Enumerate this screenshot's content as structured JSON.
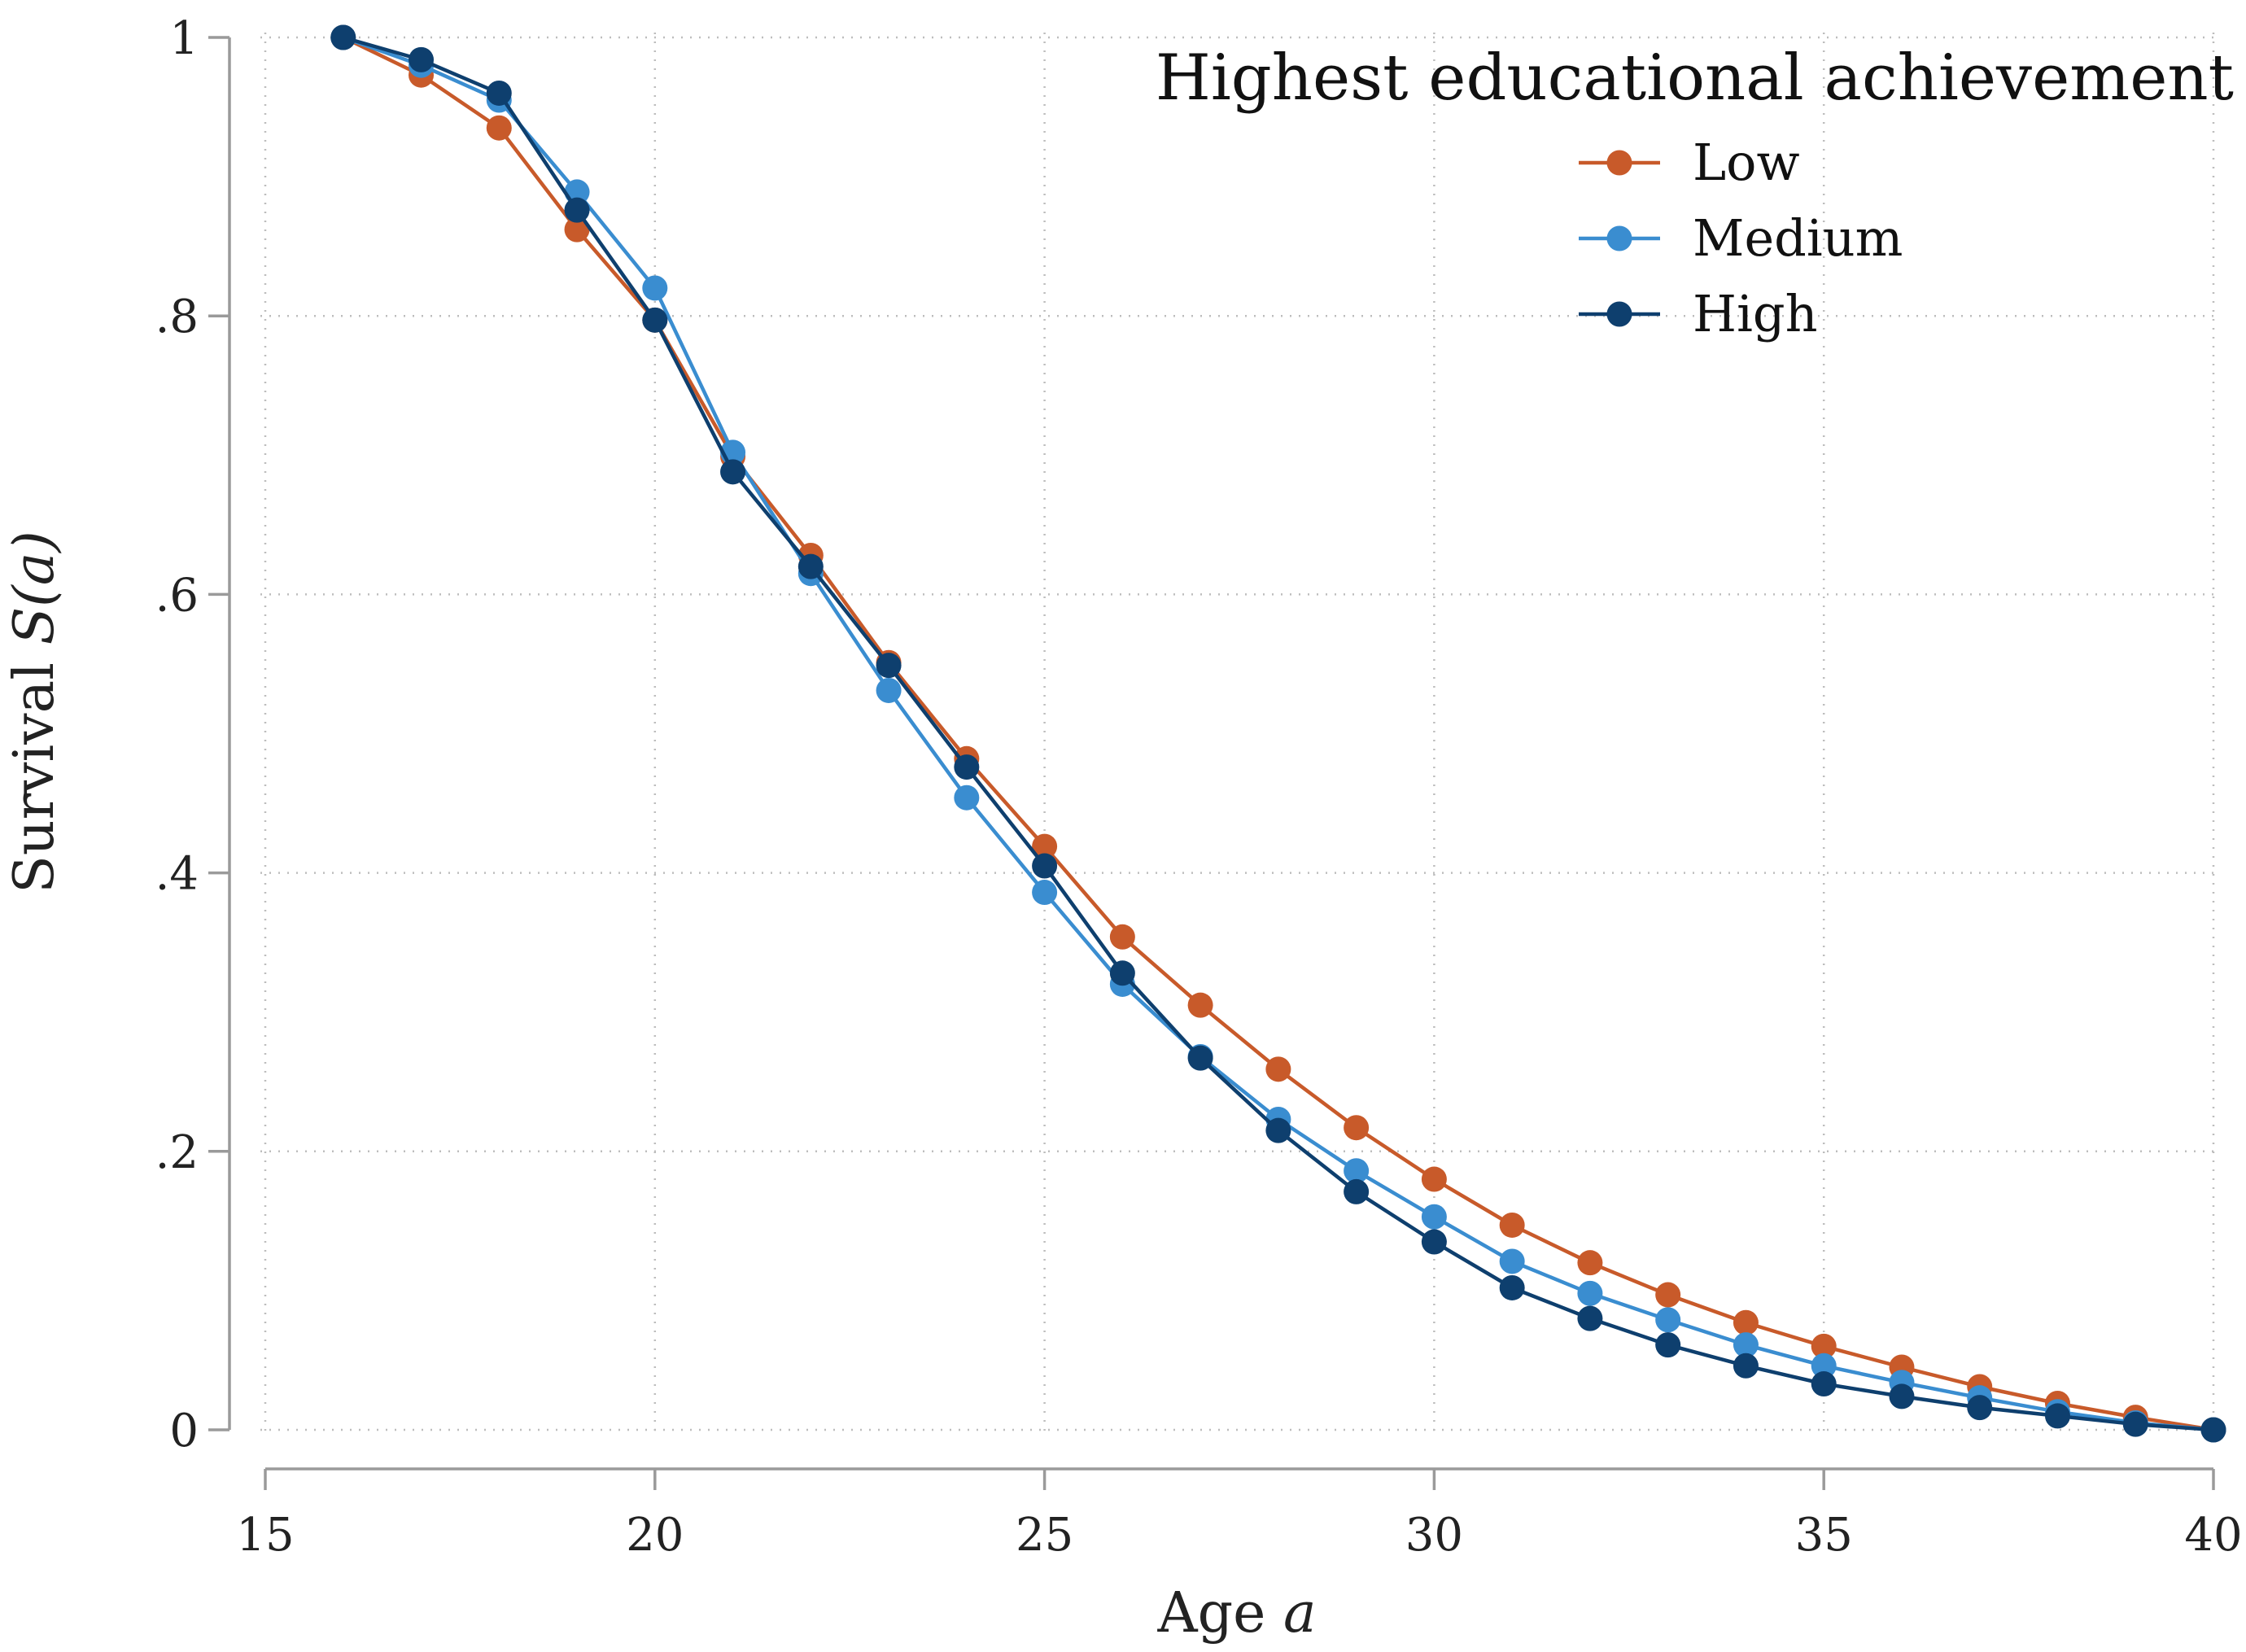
{
  "chart_data": {
    "type": "line",
    "title": "",
    "xlabel": "Age",
    "xlabel_var": "a",
    "ylabel": "Survival",
    "ylabel_func": "S(",
    "ylabel_var": "a",
    "ylabel_close": ")",
    "xlim": [
      15,
      40
    ],
    "ylim": [
      0,
      1
    ],
    "xticks": [
      15,
      20,
      25,
      30,
      35,
      40
    ],
    "xtick_labels": [
      "15",
      "20",
      "25",
      "30",
      "35",
      "40"
    ],
    "yticks": [
      0,
      0.2,
      0.4,
      0.6,
      0.8,
      1
    ],
    "ytick_labels": [
      "0",
      ".2",
      ".4",
      ".6",
      ".8",
      "1"
    ],
    "grid": true,
    "legend": {
      "title": "Highest educational achievement",
      "placement": "top-right"
    },
    "x": [
      16,
      17,
      18,
      19,
      20,
      21,
      22,
      23,
      24,
      25,
      26,
      27,
      28,
      29,
      30,
      31,
      32,
      33,
      34,
      35,
      36,
      37,
      38,
      39,
      40
    ],
    "series": [
      {
        "name": "Low",
        "color": "#c85a2a",
        "values": [
          1.0,
          0.973,
          0.935,
          0.862,
          0.797,
          0.699,
          0.628,
          0.551,
          0.482,
          0.419,
          0.354,
          0.305,
          0.259,
          0.217,
          0.18,
          0.147,
          0.12,
          0.097,
          0.077,
          0.06,
          0.045,
          0.031,
          0.019,
          0.009,
          0.0
        ]
      },
      {
        "name": "Medium",
        "color": "#3a8dd0",
        "values": [
          1.0,
          0.98,
          0.955,
          0.889,
          0.82,
          0.702,
          0.615,
          0.531,
          0.454,
          0.386,
          0.32,
          0.268,
          0.223,
          0.186,
          0.153,
          0.121,
          0.098,
          0.079,
          0.061,
          0.046,
          0.034,
          0.023,
          0.013,
          0.005,
          0.0
        ]
      },
      {
        "name": "High",
        "color": "#0e3f6e",
        "values": [
          1.0,
          0.984,
          0.96,
          0.876,
          0.797,
          0.688,
          0.62,
          0.549,
          0.476,
          0.405,
          0.328,
          0.267,
          0.215,
          0.171,
          0.135,
          0.102,
          0.08,
          0.061,
          0.046,
          0.033,
          0.024,
          0.016,
          0.01,
          0.004,
          0.0
        ]
      }
    ]
  }
}
